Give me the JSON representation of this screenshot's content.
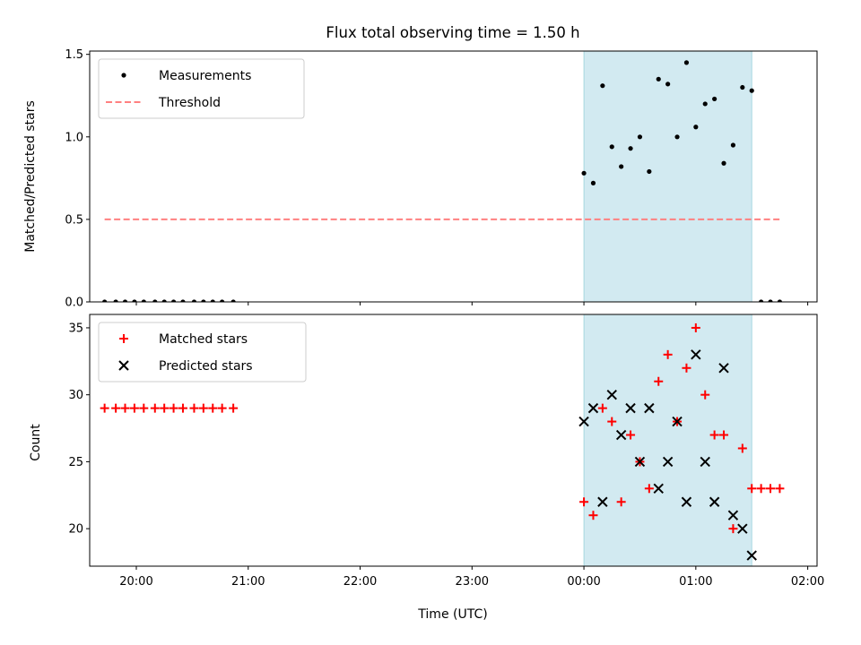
{
  "chart_data": [
    {
      "type": "scatter",
      "panel": "top",
      "title": "Flux total observing time = 1.50 h",
      "xlabel": "",
      "ylabel": "Matched/Predicted stars",
      "ylim": [
        0,
        1.52
      ],
      "yticks": [
        0.0,
        0.5,
        1.0,
        1.5
      ],
      "ytick_labels": [
        "0.0",
        "0.5",
        "1.0",
        "1.5"
      ],
      "xlim": [
        "19:35",
        "02:05"
      ],
      "grid": false,
      "legend_position": "upper-left",
      "shaded_interval": {
        "start": "00:00",
        "end": "01:30",
        "color": "#add8e6"
      },
      "series": [
        {
          "name": "Measurements",
          "marker": "dot",
          "color": "#000000",
          "x": [
            "19:43",
            "19:49",
            "19:54",
            "19:59",
            "20:04",
            "20:10",
            "20:15",
            "20:20",
            "20:25",
            "20:31",
            "20:36",
            "20:41",
            "20:46",
            "20:52",
            "00:00",
            "00:05",
            "00:10",
            "00:15",
            "00:20",
            "00:25",
            "00:30",
            "00:35",
            "00:40",
            "00:45",
            "00:50",
            "00:55",
            "01:00",
            "01:05",
            "01:10",
            "01:15",
            "01:20",
            "01:25",
            "01:30",
            "01:35",
            "01:40",
            "01:45"
          ],
          "y": [
            0,
            0,
            0,
            0,
            0,
            0,
            0,
            0,
            0,
            0,
            0,
            0,
            0,
            0,
            0.78,
            0.72,
            1.31,
            0.94,
            0.82,
            0.93,
            1.0,
            0.79,
            1.35,
            1.32,
            1.0,
            1.45,
            1.06,
            1.2,
            1.23,
            0.84,
            0.95,
            1.3,
            1.28,
            0,
            0,
            0
          ]
        },
        {
          "name": "Threshold",
          "type": "line",
          "style": "dashed",
          "color": "#ff8080",
          "x": [
            "19:43",
            "01:45"
          ],
          "y": [
            0.5,
            0.5
          ]
        }
      ]
    },
    {
      "type": "scatter",
      "panel": "bottom",
      "title": "",
      "xlabel": "Time (UTC)",
      "ylabel": "Count",
      "ylim": [
        17.2,
        36
      ],
      "yticks": [
        20,
        25,
        30,
        35
      ],
      "ytick_labels": [
        "20",
        "25",
        "30",
        "35"
      ],
      "xlim": [
        "19:35",
        "02:05"
      ],
      "xticks": [
        "20:00",
        "21:00",
        "22:00",
        "23:00",
        "00:00",
        "01:00",
        "02:00"
      ],
      "xtick_labels": [
        "20:00",
        "21:00",
        "22:00",
        "23:00",
        "00:00",
        "01:00",
        "02:00"
      ],
      "grid": false,
      "legend_position": "upper-left",
      "shaded_interval": {
        "start": "00:00",
        "end": "01:30",
        "color": "#add8e6"
      },
      "series": [
        {
          "name": "Matched stars",
          "marker": "plus",
          "color": "#ff0000",
          "x": [
            "19:43",
            "19:49",
            "19:54",
            "19:59",
            "20:04",
            "20:10",
            "20:15",
            "20:20",
            "20:25",
            "20:31",
            "20:36",
            "20:41",
            "20:46",
            "20:52",
            "00:00",
            "00:05",
            "00:10",
            "00:15",
            "00:20",
            "00:25",
            "00:30",
            "00:35",
            "00:40",
            "00:45",
            "00:50",
            "00:55",
            "01:00",
            "01:05",
            "01:10",
            "01:15",
            "01:20",
            "01:25",
            "01:30",
            "01:35",
            "01:40",
            "01:45"
          ],
          "y": [
            29,
            29,
            29,
            29,
            29,
            29,
            29,
            29,
            29,
            29,
            29,
            29,
            29,
            29,
            22,
            21,
            29,
            28,
            22,
            27,
            25,
            23,
            31,
            33,
            28,
            32,
            35,
            30,
            27,
            27,
            20,
            26,
            23,
            23,
            23,
            23
          ]
        },
        {
          "name": "Predicted stars",
          "marker": "x",
          "color": "#000000",
          "x": [
            "00:00",
            "00:05",
            "00:10",
            "00:15",
            "00:20",
            "00:25",
            "00:30",
            "00:35",
            "00:40",
            "00:45",
            "00:50",
            "00:55",
            "01:00",
            "01:05",
            "01:10",
            "01:15",
            "01:20",
            "01:25",
            "01:30"
          ],
          "y": [
            28,
            29,
            22,
            30,
            27,
            29,
            25,
            29,
            23,
            25,
            28,
            22,
            33,
            25,
            22,
            32,
            21,
            20,
            18
          ]
        }
      ]
    }
  ]
}
